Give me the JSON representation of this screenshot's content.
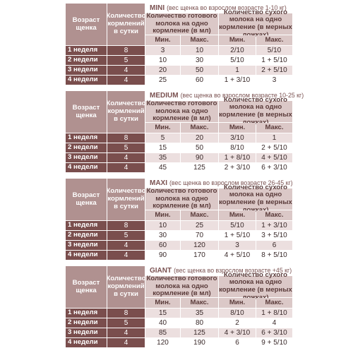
{
  "headers": {
    "age": "Возраст щенка",
    "feeds": "Количество кормлений в сутки",
    "ready_milk": "Количество готового молока на одно кормление (в мл)",
    "dry_milk": "Количество сухого молока на одно кормление (в мерных ложках)",
    "min": "Мин.",
    "max": "Макс."
  },
  "tables": [
    {
      "size": "MINI",
      "subtitle": "(вес щенка во взрослом возрасте 1-10 кг)",
      "rows": [
        {
          "age": "1 неделя",
          "feeds": "8",
          "ml_min": "3",
          "ml_max": "10",
          "sp_min": "2/10",
          "sp_max": "5/10"
        },
        {
          "age": "2 недели",
          "feeds": "5",
          "ml_min": "10",
          "ml_max": "30",
          "sp_min": "5/10",
          "sp_max": "1 + 5/10"
        },
        {
          "age": "3 недели",
          "feeds": "4",
          "ml_min": "20",
          "ml_max": "50",
          "sp_min": "1",
          "sp_max": "2 + 5/10"
        },
        {
          "age": "4 недели",
          "feeds": "4",
          "ml_min": "25",
          "ml_max": "60",
          "sp_min": "1 + 3/10",
          "sp_max": "3"
        }
      ]
    },
    {
      "size": "MEDIUM",
      "subtitle": "(вес щенка во взрослом возрасте 10-25 кг)",
      "rows": [
        {
          "age": "1 неделя",
          "feeds": "8",
          "ml_min": "5",
          "ml_max": "20",
          "sp_min": "3/10",
          "sp_max": "1"
        },
        {
          "age": "2 недели",
          "feeds": "5",
          "ml_min": "15",
          "ml_max": "50",
          "sp_min": "8/10",
          "sp_max": "2 + 5/10"
        },
        {
          "age": "3 недели",
          "feeds": "4",
          "ml_min": "35",
          "ml_max": "90",
          "sp_min": "1 + 8/10",
          "sp_max": "4 + 5/10"
        },
        {
          "age": "4 недели",
          "feeds": "4",
          "ml_min": "45",
          "ml_max": "125",
          "sp_min": "2 + 3/10",
          "sp_max": "6 + 3/10"
        }
      ]
    },
    {
      "size": "MAXI",
      "subtitle": "(вес щенка во взрослом возрасте 26-45 кг)",
      "rows": [
        {
          "age": "1 неделя",
          "feeds": "8",
          "ml_min": "10",
          "ml_max": "25",
          "sp_min": "5/10",
          "sp_max": "1 + 3/10"
        },
        {
          "age": "2 недели",
          "feeds": "5",
          "ml_min": "30",
          "ml_max": "70",
          "sp_min": "1 + 5/10",
          "sp_max": "3 + 5/10"
        },
        {
          "age": "3 недели",
          "feeds": "4",
          "ml_min": "60",
          "ml_max": "120",
          "sp_min": "3",
          "sp_max": "6"
        },
        {
          "age": "4 недели",
          "feeds": "4",
          "ml_min": "90",
          "ml_max": "170",
          "sp_min": "4 + 5/10",
          "sp_max": "8 + 5/10"
        }
      ]
    },
    {
      "size": "GIANT",
      "subtitle": "(вес щенка во взрослом возрасте +45 кг)",
      "rows": [
        {
          "age": "1 неделя",
          "feeds": "8",
          "ml_min": "15",
          "ml_max": "35",
          "sp_min": "8/10",
          "sp_max": "1 + 8/10"
        },
        {
          "age": "2 недели",
          "feeds": "5",
          "ml_min": "40",
          "ml_max": "80",
          "sp_min": "2",
          "sp_max": "4"
        },
        {
          "age": "3 недели",
          "feeds": "4",
          "ml_min": "85",
          "ml_max": "125",
          "sp_min": "4 + 3/10",
          "sp_max": "6 + 3/10"
        },
        {
          "age": "4 недели",
          "feeds": "4",
          "ml_min": "120",
          "ml_max": "190",
          "sp_min": "6",
          "sp_max": "9 + 5/10"
        }
      ]
    }
  ]
}
